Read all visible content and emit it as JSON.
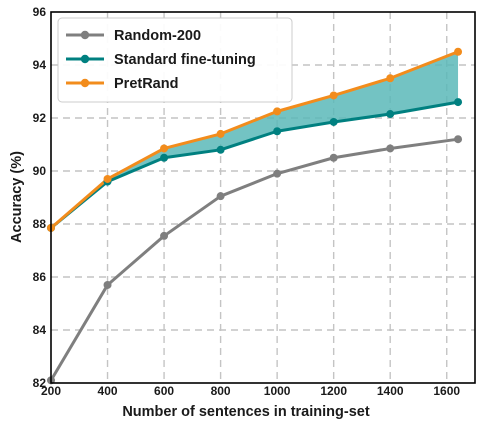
{
  "chart_data": {
    "type": "line",
    "xlabel": "Number of sentences in training-set",
    "ylabel": "Accuracy (%)",
    "xlim": [
      200,
      1700
    ],
    "ylim": [
      82,
      96
    ],
    "xticks": [
      "200",
      "400",
      "600",
      "800",
      "1000",
      "1200",
      "1400",
      "1600"
    ],
    "yticks": [
      "82",
      "84",
      "86",
      "88",
      "90",
      "92",
      "94",
      "96"
    ],
    "grid": true,
    "legend_position": "top-left",
    "shaded_region": {
      "between": [
        "Standard fine-tuning",
        "PretRand"
      ],
      "color": "#5ab8b8"
    },
    "x": [
      200,
      400,
      600,
      800,
      1000,
      1200,
      1400,
      1640
    ],
    "series": [
      {
        "name": "Random-200",
        "color": "#7f7f7f",
        "values": [
          82.1,
          85.7,
          87.55,
          89.05,
          89.9,
          90.5,
          90.85,
          91.2
        ]
      },
      {
        "name": "Standard fine-tuning",
        "color": "#008080",
        "values": [
          87.85,
          89.6,
          90.5,
          90.8,
          91.5,
          91.85,
          92.15,
          92.6
        ]
      },
      {
        "name": "PretRand",
        "color": "#f28c1c",
        "values": [
          87.85,
          89.7,
          90.85,
          91.4,
          92.25,
          92.85,
          93.5,
          94.5
        ]
      }
    ]
  }
}
